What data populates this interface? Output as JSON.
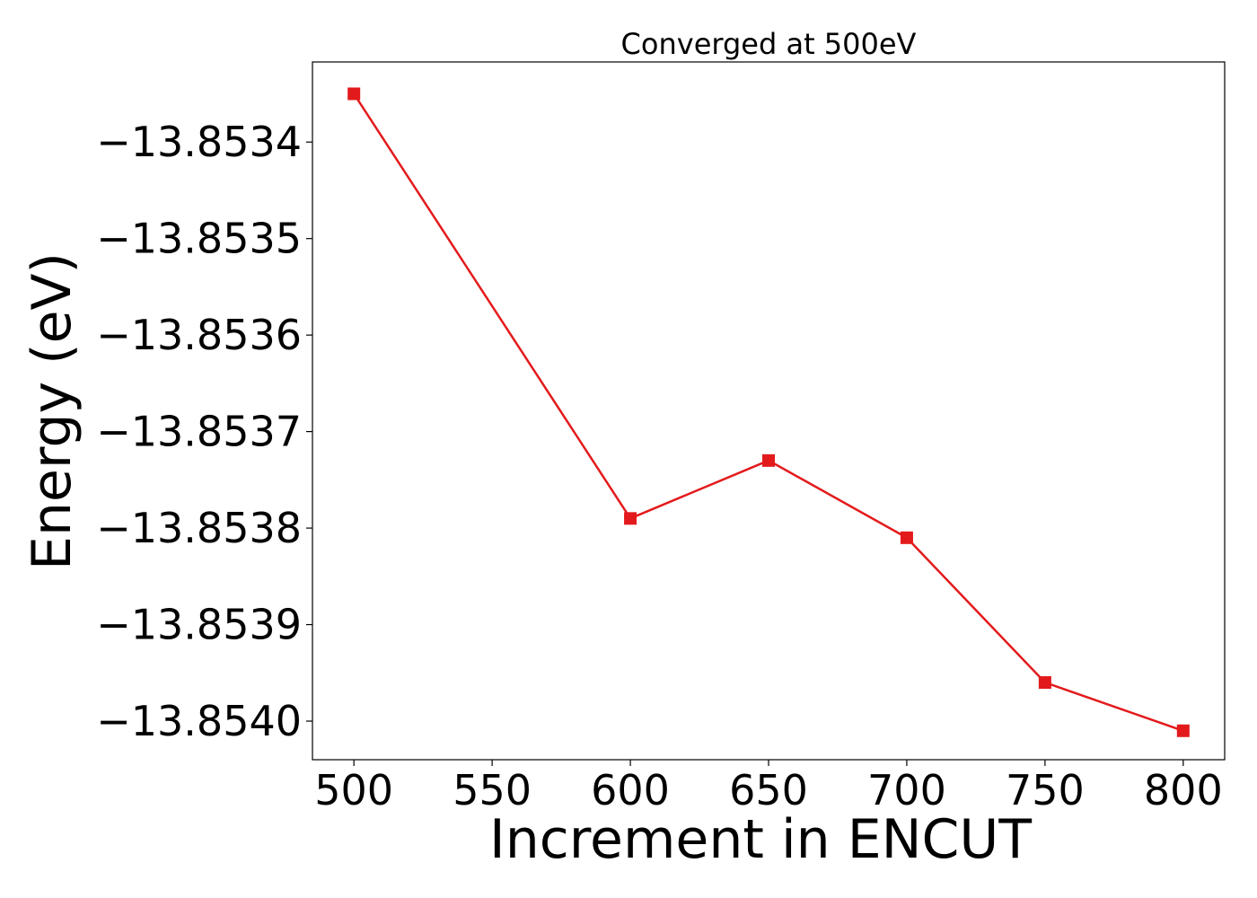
{
  "chart_data": {
    "type": "line",
    "title": "Converged at 500eV",
    "xlabel": "Increment in ENCUT",
    "ylabel": "Energy (eV)",
    "x": [
      500,
      600,
      650,
      700,
      750,
      800
    ],
    "series": [
      {
        "values": [
          -13.85335,
          -13.85379,
          -13.85373,
          -13.85381,
          -13.85396,
          -13.85401
        ]
      }
    ],
    "xticks": [
      500,
      550,
      600,
      650,
      700,
      750,
      800
    ],
    "xtick_labels": [
      "500",
      "550",
      "600",
      "650",
      "700",
      "750",
      "800"
    ],
    "yticks": [
      -13.8534,
      -13.8535,
      -13.8536,
      -13.8537,
      -13.8538,
      -13.8539,
      -13.854
    ],
    "ytick_labels": [
      "−13.8534",
      "−13.8535",
      "−13.8536",
      "−13.8537",
      "−13.8538",
      "−13.8539",
      "−13.8540"
    ],
    "xlim": [
      485,
      815
    ],
    "ylim": [
      -13.85404,
      -13.853317
    ],
    "grid": false,
    "legend": "none",
    "colors": {
      "line": "#e31a1c",
      "marker": "#e31a1c",
      "axes": "#000000"
    },
    "marker": "square"
  }
}
